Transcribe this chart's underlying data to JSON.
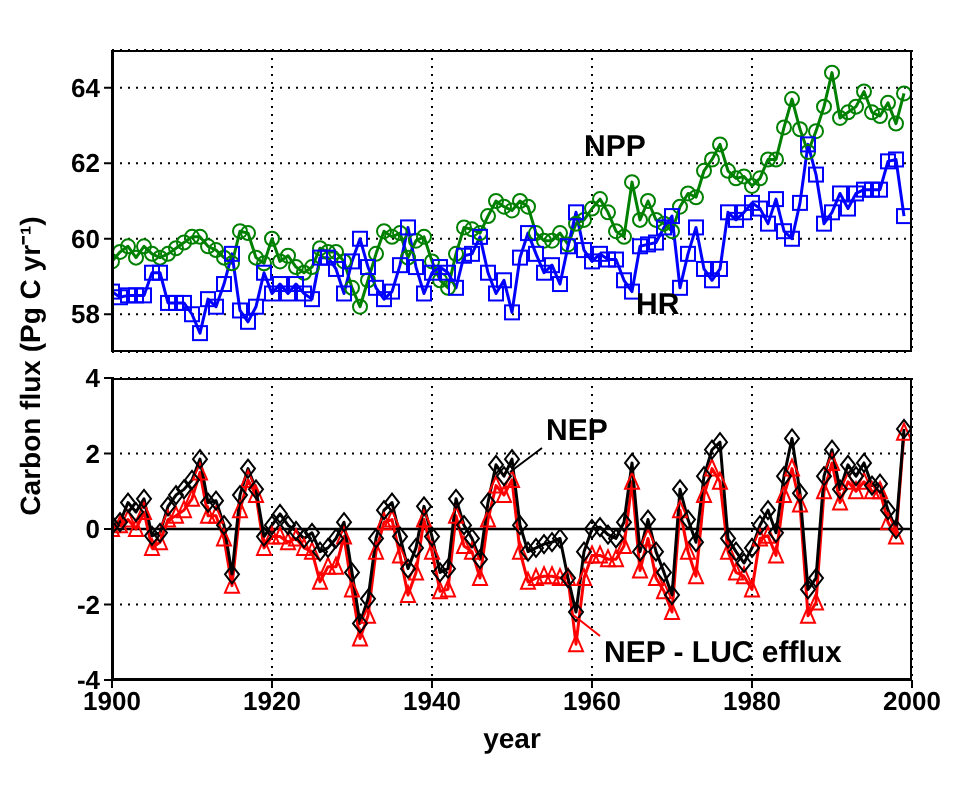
{
  "chart_data": [
    {
      "type": "line",
      "ylabel": "Carbon flux (Pg C yr⁻¹)",
      "xlim": [
        1900,
        2000
      ],
      "xticks": [
        1900,
        1920,
        1940,
        1960,
        1980,
        2000
      ],
      "ylim": [
        57,
        65
      ],
      "yticks": [
        58,
        60,
        62,
        64
      ],
      "grid": true,
      "tick_labels": "y",
      "x": [
        1900,
        1901,
        1902,
        1903,
        1904,
        1905,
        1906,
        1907,
        1908,
        1909,
        1910,
        1911,
        1912,
        1913,
        1914,
        1915,
        1916,
        1917,
        1918,
        1919,
        1920,
        1921,
        1922,
        1923,
        1924,
        1925,
        1926,
        1927,
        1928,
        1929,
        1930,
        1931,
        1932,
        1933,
        1934,
        1935,
        1936,
        1937,
        1938,
        1939,
        1940,
        1941,
        1942,
        1943,
        1944,
        1945,
        1946,
        1947,
        1948,
        1949,
        1950,
        1951,
        1952,
        1953,
        1954,
        1955,
        1956,
        1957,
        1958,
        1959,
        1960,
        1961,
        1962,
        1963,
        1964,
        1965,
        1966,
        1967,
        1968,
        1969,
        1970,
        1971,
        1972,
        1973,
        1974,
        1975,
        1976,
        1977,
        1978,
        1979,
        1980,
        1981,
        1982,
        1983,
        1984,
        1985,
        1986,
        1987,
        1988,
        1989,
        1990,
        1991,
        1992,
        1993,
        1994,
        1995,
        1996,
        1997,
        1998,
        1999
      ],
      "series": [
        {
          "name": "NPP",
          "color": "#008000",
          "marker": "circle",
          "values": [
            59.4,
            59.65,
            59.8,
            59.5,
            59.8,
            59.6,
            59.5,
            59.6,
            59.75,
            59.9,
            60.05,
            60.05,
            59.8,
            59.7,
            59.5,
            59.35,
            60.2,
            60.15,
            59.5,
            59.35,
            60.0,
            59.4,
            59.55,
            59.25,
            59.1,
            59.25,
            59.75,
            59.65,
            59.65,
            59.4,
            58.7,
            58.2,
            58.9,
            59.6,
            60.2,
            60.05,
            60.15,
            59.5,
            59.95,
            60.05,
            59.4,
            58.9,
            58.7,
            59.6,
            60.3,
            60.25,
            60.15,
            60.6,
            61.0,
            60.85,
            60.75,
            61.0,
            60.85,
            60.15,
            59.95,
            59.95,
            60.15,
            59.85,
            60.4,
            60.5,
            60.8,
            61.05,
            60.7,
            60.2,
            60.05,
            61.5,
            60.5,
            61.0,
            60.5,
            60.4,
            60.2,
            60.85,
            61.2,
            61.1,
            61.8,
            62.1,
            62.5,
            61.8,
            61.6,
            61.65,
            61.4,
            61.6,
            62.1,
            62.1,
            62.95,
            63.7,
            62.9,
            62.3,
            62.85,
            63.5,
            64.4,
            63.2,
            63.35,
            63.5,
            63.9,
            63.35,
            63.25,
            63.6,
            63.05,
            63.85
          ]
        },
        {
          "name": "HR",
          "color": "#0000ff",
          "marker": "square",
          "values": [
            58.6,
            58.45,
            58.5,
            58.5,
            58.5,
            59.1,
            59.1,
            58.3,
            58.3,
            58.3,
            58.0,
            57.5,
            58.4,
            58.2,
            58.8,
            59.6,
            58.1,
            57.8,
            58.2,
            59.1,
            58.55,
            58.8,
            58.55,
            58.8,
            58.55,
            58.4,
            59.5,
            59.5,
            59.2,
            58.55,
            59.4,
            60.0,
            59.25,
            58.7,
            58.4,
            58.6,
            59.3,
            60.3,
            59.25,
            58.55,
            59.1,
            59.25,
            59.1,
            58.7,
            59.55,
            59.6,
            60.05,
            59.1,
            58.55,
            58.9,
            58.05,
            59.5,
            60.15,
            59.6,
            59.1,
            59.3,
            58.8,
            59.8,
            60.7,
            59.7,
            59.4,
            59.6,
            59.45,
            59.45,
            58.9,
            58.6,
            59.8,
            59.85,
            59.9,
            60.3,
            60.6,
            58.7,
            59.6,
            60.3,
            59.2,
            58.9,
            59.2,
            60.7,
            60.5,
            60.7,
            60.95,
            60.8,
            60.4,
            61.05,
            60.2,
            60.0,
            60.95,
            62.5,
            61.7,
            60.4,
            60.7,
            61.2,
            60.8,
            61.2,
            61.3,
            61.3,
            61.3,
            62.05,
            62.1,
            60.6
          ]
        }
      ]
    },
    {
      "type": "line",
      "xlabel": "year",
      "xlim": [
        1900,
        2000
      ],
      "xticks": [
        1900,
        1920,
        1940,
        1960,
        1980,
        2000
      ],
      "ylim": [
        -4,
        4
      ],
      "yticks": [
        -4,
        -2,
        0,
        2,
        4
      ],
      "grid": true,
      "ref_lines": [
        {
          "axis": "y",
          "value": 0,
          "color": "#000000"
        }
      ],
      "x": [
        1900,
        1901,
        1902,
        1903,
        1904,
        1905,
        1906,
        1907,
        1908,
        1909,
        1910,
        1911,
        1912,
        1913,
        1914,
        1915,
        1916,
        1917,
        1918,
        1919,
        1920,
        1921,
        1922,
        1923,
        1924,
        1925,
        1926,
        1927,
        1928,
        1929,
        1930,
        1931,
        1932,
        1933,
        1934,
        1935,
        1936,
        1937,
        1938,
        1939,
        1940,
        1941,
        1942,
        1943,
        1944,
        1945,
        1946,
        1947,
        1948,
        1949,
        1950,
        1951,
        1952,
        1953,
        1954,
        1955,
        1956,
        1957,
        1958,
        1959,
        1960,
        1961,
        1962,
        1963,
        1964,
        1965,
        1966,
        1967,
        1968,
        1969,
        1970,
        1971,
        1972,
        1973,
        1974,
        1975,
        1976,
        1977,
        1978,
        1979,
        1980,
        1981,
        1982,
        1983,
        1984,
        1985,
        1986,
        1987,
        1988,
        1989,
        1990,
        1991,
        1992,
        1993,
        1994,
        1995,
        1996,
        1997,
        1998,
        1999
      ],
      "series": [
        {
          "name": "NEP - LUC efflux",
          "color": "#ff0000",
          "marker": "triangle",
          "values": [
            0,
            0.1,
            0.25,
            0,
            0.45,
            -0.5,
            -0.35,
            0.25,
            0.35,
            0.5,
            0.8,
            1.5,
            0.35,
            0.35,
            -0.25,
            -1.5,
            0.5,
            1.3,
            0.9,
            -0.5,
            -0.2,
            -0.2,
            -0.35,
            -0.25,
            -0.5,
            -0.6,
            -1.4,
            -1.0,
            -1.0,
            -0.2,
            -1.6,
            -2.9,
            -2.3,
            -0.6,
            0.18,
            0.25,
            -0.7,
            -1.75,
            -1.15,
            0.25,
            -0.6,
            -1.65,
            -1.6,
            0.35,
            -0.45,
            -0.6,
            -1.3,
            0.25,
            1.15,
            0.9,
            1.3,
            -0.6,
            -1.4,
            -1.3,
            -1.25,
            -1.25,
            -1.3,
            -1.3,
            -3.05,
            -1.3,
            -0.7,
            -0.7,
            -0.8,
            -0.8,
            -0.45,
            1.25,
            -1.1,
            -0.25,
            -1.3,
            -1.65,
            -2.2,
            0.5,
            -0.6,
            -1.25,
            0.9,
            1.6,
            1.25,
            -0.6,
            -1.15,
            -1.25,
            -1.6,
            -0.25,
            -0.18,
            -0.7,
            0.9,
            1.6,
            0.65,
            -2.3,
            -1.95,
            1.0,
            1.75,
            0.7,
            1.25,
            1.0,
            1.25,
            1.0,
            1.0,
            0.18,
            -0.2,
            2.55
          ]
        },
        {
          "name": "NEP",
          "color": "#000000",
          "marker": "diamond",
          "values": [
            0.1,
            0.18,
            0.7,
            0.45,
            0.8,
            -0.18,
            -0.1,
            0.6,
            0.9,
            1.05,
            1.3,
            1.85,
            0.7,
            0.75,
            0.1,
            -1.2,
            0.9,
            1.6,
            1.05,
            -0.2,
            0.1,
            0.4,
            0.1,
            -0.05,
            -0.25,
            -0.1,
            -0.6,
            -0.5,
            -0.25,
            0.18,
            -1.15,
            -2.5,
            -1.85,
            -0.25,
            0.5,
            0.7,
            -0.2,
            -1.05,
            -0.5,
            0.6,
            -0.2,
            -1.15,
            -1.05,
            0.8,
            0.1,
            -0.25,
            -0.8,
            0.7,
            1.7,
            1.4,
            1.85,
            0.1,
            -0.6,
            -0.5,
            -0.4,
            -0.35,
            -0.25,
            -1.3,
            -2.2,
            -0.6,
            0,
            0.05,
            -0.15,
            -0.25,
            0.18,
            1.75,
            -0.6,
            0.25,
            -0.6,
            -1.15,
            -1.75,
            1.05,
            0.25,
            -0.35,
            1.4,
            2.1,
            2.3,
            -0.25,
            -0.6,
            -0.9,
            -0.5,
            0.1,
            0.5,
            -0.1,
            1.4,
            2.4,
            0.95,
            -1.6,
            -1.3,
            1.4,
            2.1,
            1.05,
            1.7,
            1.4,
            1.75,
            1.15,
            1.2,
            0.5,
            0,
            2.65
          ]
        }
      ]
    }
  ]
}
